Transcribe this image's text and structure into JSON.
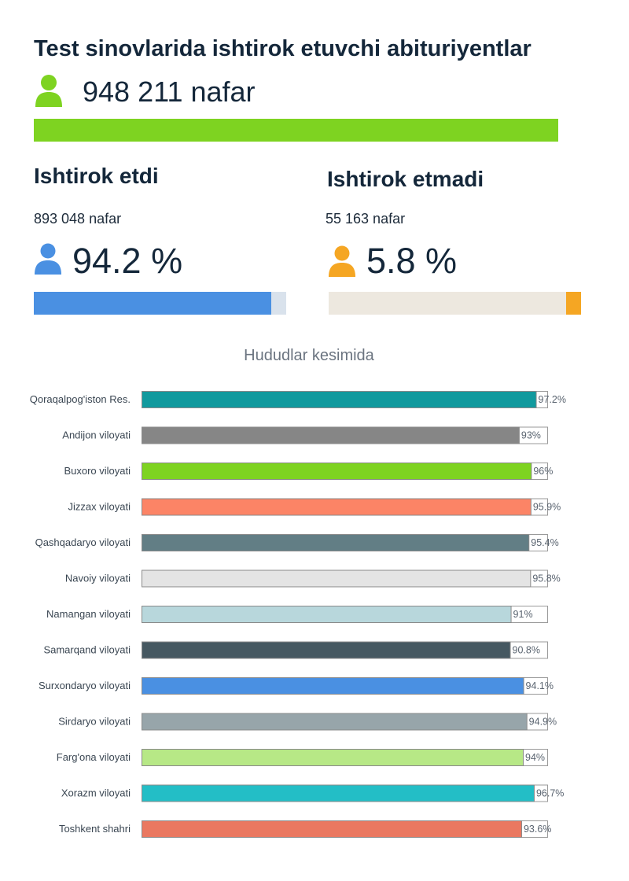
{
  "header": {
    "title": "Test sinovlarida ishtirok etuvchi abituriyentlar",
    "total": "948 211 nafar",
    "total_icon": "person-icon",
    "total_color": "#7ed321"
  },
  "participated": {
    "title": "Ishtirok etdi",
    "count": "893 048 nafar",
    "percent_label": "94.2 %",
    "percent": 94.2,
    "icon": "person-icon",
    "color": "#4a90e2",
    "track_color": "#d9e2ec"
  },
  "not_participated": {
    "title": "Ishtirok etmadi",
    "count": "55 163 nafar",
    "percent_label": "5.8 %",
    "percent": 5.8,
    "icon": "person-icon",
    "color": "#f5a623",
    "track_color": "#ede8df"
  },
  "chart_data": {
    "type": "bar",
    "orientation": "horizontal",
    "title": "Hududlar kesimida",
    "xlim": [
      0,
      100
    ],
    "categories": [
      "Qoraqalpog'iston Res.",
      "Andijon viloyati",
      "Buxoro viloyati",
      "Jizzax viloyati",
      "Qashqadaryo viloyati",
      "Navoiy viloyati",
      "Namangan viloyati",
      "Samarqand viloyati",
      "Surxondaryo viloyati",
      "Sirdaryo viloyati",
      "Farg'ona viloyati",
      "Xorazm viloyati",
      "Toshkent shahri"
    ],
    "values": [
      97.2,
      93,
      96,
      95.9,
      95.4,
      95.8,
      91,
      90.8,
      94.1,
      94.9,
      94,
      96.7,
      93.6
    ],
    "value_labels": [
      "97.2%",
      "93%",
      "96%",
      "95.9%",
      "95.4%",
      "95.8%",
      "91%",
      "90.8%",
      "94.1%",
      "94.9%",
      "94%",
      "96.7%",
      "93.6%"
    ],
    "colors": [
      "#119a9e",
      "#868686",
      "#7ed321",
      "#fc8466",
      "#627e85",
      "#e4e4e4",
      "#b8d7dc",
      "#465861",
      "#4a90e2",
      "#97a5aa",
      "#b7e886",
      "#23bec6",
      "#ea7860"
    ]
  }
}
